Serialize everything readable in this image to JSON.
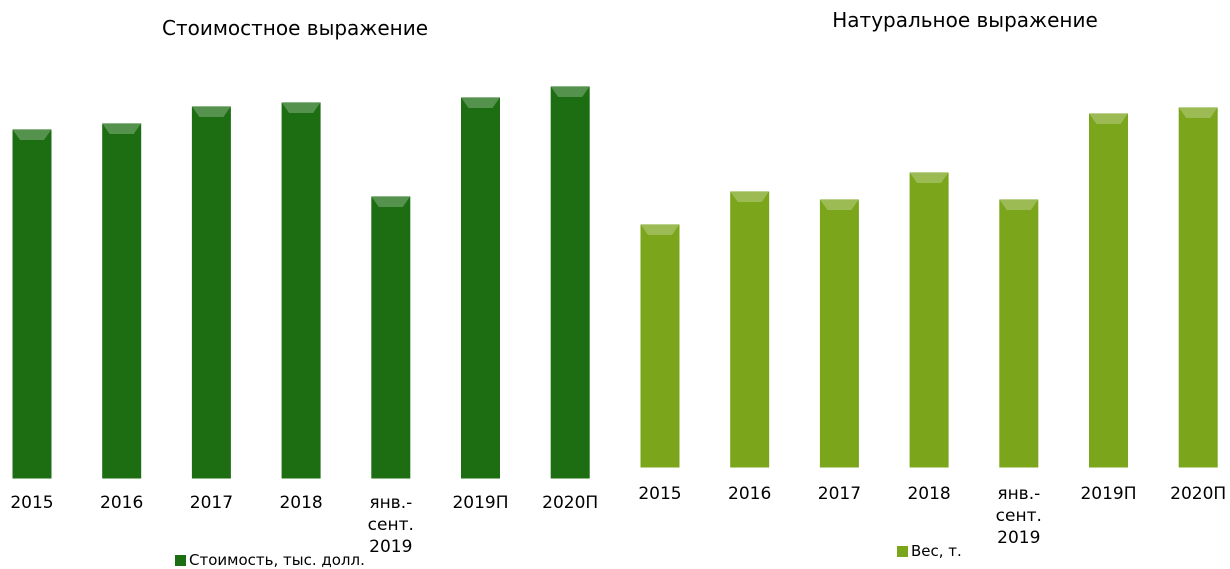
{
  "chart_data": [
    {
      "type": "bar",
      "title": "Стоимостное выражение",
      "categories": [
        "2015",
        "2016",
        "2017",
        "2018",
        "янв.-сент. 2019",
        "2019П",
        "2020П"
      ],
      "series": [
        {
          "name": "Стоимость, тыс. долл.",
          "color": "#1d6e12",
          "values": [
            348,
            354,
            371,
            375,
            281,
            380,
            391
          ]
        }
      ]
    },
    {
      "type": "bar",
      "title": "Натуральное выражение",
      "categories": [
        "2015",
        "2016",
        "2017",
        "2018",
        "янв.-сент. 2019",
        "2019П",
        "2020П"
      ],
      "series": [
        {
          "name": "Вес, т.",
          "color": "#7ba51b",
          "values": [
            242,
            275,
            267,
            294,
            267,
            353,
            359
          ]
        }
      ]
    }
  ]
}
